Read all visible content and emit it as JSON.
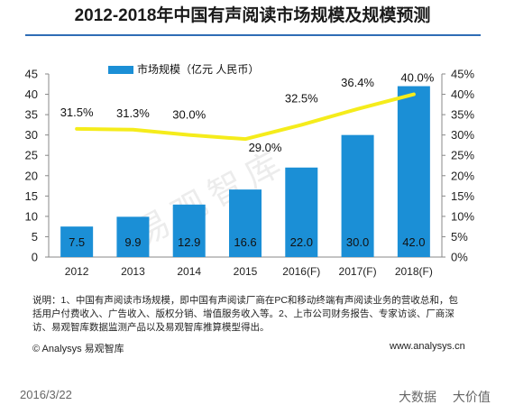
{
  "title": "2012-2018年中国有声阅读市场规模及规模预测",
  "chart_data": {
    "type": "bar",
    "categories": [
      "2012",
      "2013",
      "2014",
      "2015",
      "2016(F)",
      "2017(F)",
      "2018(F)"
    ],
    "series": [
      {
        "name": "市场规模（亿元 人民币）",
        "type": "bar",
        "axis": "left",
        "values": [
          7.5,
          9.9,
          12.9,
          16.6,
          22.0,
          30.0,
          42.0
        ],
        "labels": [
          "7.5",
          "9.9",
          "12.9",
          "16.6",
          "22.0",
          "30.0",
          "42.0"
        ]
      },
      {
        "name": "",
        "type": "line",
        "axis": "right",
        "values": [
          31.5,
          31.3,
          30.0,
          29.0,
          32.5,
          36.4,
          40.0
        ],
        "labels": [
          "31.5%",
          "31.3%",
          "30.0%",
          "29.0%",
          "32.5%",
          "36.4%",
          "40.0%"
        ]
      }
    ],
    "y_left": {
      "min": 0,
      "max": 45,
      "ticks": [
        "0",
        "5",
        "10",
        "15",
        "20",
        "25",
        "30",
        "35",
        "40",
        "45"
      ]
    },
    "y_right": {
      "min": 0,
      "max": 45,
      "ticks": [
        "0%",
        "5%",
        "10%",
        "15%",
        "20%",
        "25%",
        "30%",
        "35%",
        "40%",
        "45%"
      ]
    },
    "xlabel": "",
    "ylabel": "",
    "grid": false,
    "legend": "top-left",
    "colors": {
      "bar": "#1b8fd6",
      "line": "#f5ec1b",
      "axis": "#888888"
    }
  },
  "note": "说明：1、中国有声阅读市场规模，即中国有声阅读厂商在PC和移动终端有声阅读业务的营收总和，包括用户付费收入、广告收入、版权分销、增值服务收入等。2、上市公司财务报告、专家访谈、厂商深访、易观智库数据监测产品以及易观智库推算模型得出。",
  "source": "© Analysys 易观智库",
  "website": "www.analysys.cn",
  "watermark": "易观智库",
  "date": "2016/3/22",
  "bottom_right": [
    "大数据",
    "大价值"
  ]
}
